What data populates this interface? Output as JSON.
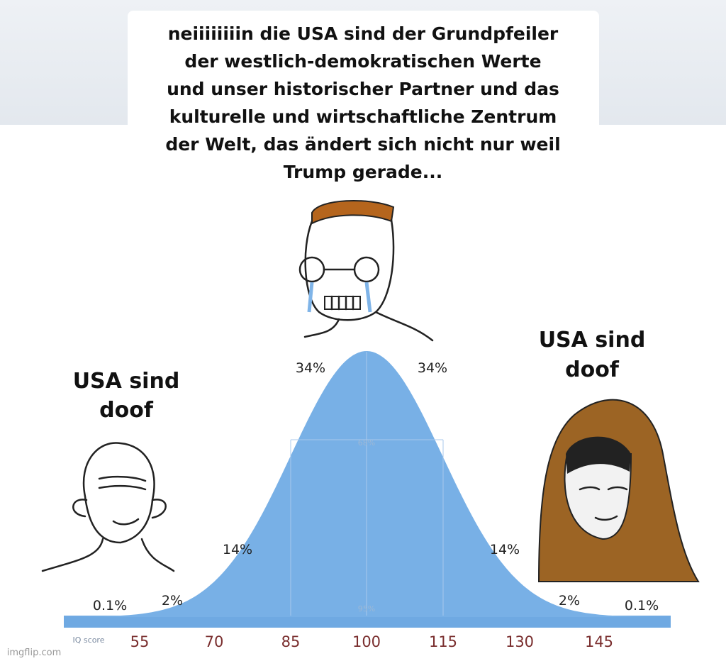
{
  "caption": {
    "lines": [
      "neiiiiiiiin die USA sind der Grundpfeiler",
      "der westlich-demokratischen Werte",
      "und unser historischer Partner und das",
      "kulturelle und wirtschaftliche Zentrum",
      "der Welt, das ändert sich nicht nur weil",
      "Trump gerade..."
    ]
  },
  "left_label": {
    "lines": [
      "USA sind",
      "doof"
    ]
  },
  "right_label": {
    "lines": [
      "USA sind",
      "doof"
    ]
  },
  "curve": {
    "percent_labels": [
      "0.1%",
      "2%",
      "14%",
      "34%",
      "34%",
      "14%",
      "2%",
      "0.1%"
    ],
    "inner_labels": [
      "68%",
      "95%"
    ],
    "axis_title": "IQ score",
    "axis_labels": [
      "55",
      "70",
      "85",
      "100",
      "115",
      "130",
      "145"
    ]
  },
  "watermark": "imgflip.com"
}
